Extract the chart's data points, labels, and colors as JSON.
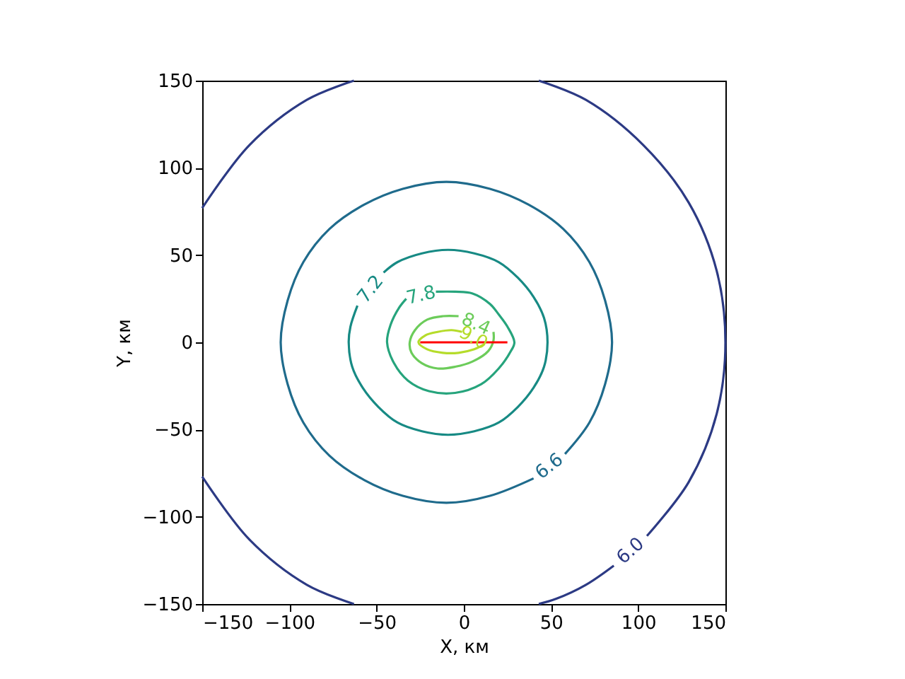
{
  "chart_data": {
    "type": "line",
    "xlabel": "X, км",
    "ylabel": "Y, км",
    "marker": "none",
    "xlim": [
      -150,
      150
    ],
    "ylim": [
      -150,
      150
    ],
    "xticks": [
      -150,
      -100,
      -50,
      0,
      50,
      100,
      150
    ],
    "yticks": [
      -150,
      -100,
      -50,
      0,
      50,
      100,
      150
    ],
    "series": [
      {
        "name": "6.0",
        "color": "#2c3a84",
        "x": [
          86,
          70,
          53,
          43,
          null,
          -63,
          -90,
          -123,
          -150,
          null,
          -150,
          -123,
          -90,
          -63,
          null,
          43,
          70,
          103,
          129,
          145,
          150,
          145,
          129,
          105
        ],
        "values": [
          -128,
          -139,
          -147,
          -150,
          null,
          -150,
          -139,
          -113,
          -77,
          null,
          77,
          113,
          139,
          150,
          null,
          150,
          139,
          113,
          80,
          41,
          0,
          -41,
          -80,
          -111
        ]
      },
      {
        "name": "6.6",
        "color": "#1f6b8c",
        "x": [
          40,
          15,
          -10,
          -35,
          -57,
          -77,
          -92,
          -101,
          -105,
          -101,
          -92,
          -77,
          -57,
          -35,
          -10,
          15,
          37,
          57,
          72,
          81,
          85,
          81,
          72,
          58
        ],
        "values": [
          -78,
          -88,
          -92,
          -88,
          -79,
          -65,
          -46,
          -24,
          0,
          24,
          46,
          65,
          79,
          88,
          92,
          88,
          79,
          65,
          46,
          24,
          0,
          -24,
          -46,
          -64
        ]
      },
      {
        "name": "7.2",
        "color": "#178a84",
        "x": [
          -61,
          -65,
          -66,
          -64,
          -58,
          -49,
          -38,
          -24,
          -9,
          6,
          20,
          31,
          40,
          46,
          48,
          46,
          40,
          31,
          20,
          6,
          -9,
          -24,
          -38,
          -46
        ],
        "values": [
          21,
          9,
          0,
          -14,
          -26,
          -37,
          -46,
          -51,
          -53,
          -51,
          -46,
          -37,
          -26,
          -14,
          0,
          14,
          26,
          37,
          46,
          51,
          53,
          51,
          46,
          40
        ]
      },
      {
        "name": "7.8",
        "color": "#26a47c",
        "x": [
          -16,
          -5,
          5,
          15,
          20,
          25,
          29,
          27,
          20,
          10,
          -5,
          -20,
          -32,
          -40,
          -44,
          -42,
          -37,
          -33
        ],
        "values": [
          29,
          29,
          28,
          22,
          16,
          9,
          0,
          -5,
          -15,
          -24,
          -29,
          -28,
          -22,
          -12,
          0,
          10,
          20,
          25
        ]
      },
      {
        "name": "8.4",
        "color": "#6ccc5a",
        "x": [
          17,
          17,
          14,
          5,
          -5,
          -15,
          -24,
          -30,
          -31,
          -28,
          -21,
          -12,
          -3
        ],
        "values": [
          6,
          1,
          -5,
          -11,
          -14,
          -15,
          -12,
          -6,
          0,
          7,
          13,
          15,
          15
        ]
      },
      {
        "name": "9.0",
        "color": "#b5dc2a",
        "x": [
          12,
          6,
          -3,
          -12,
          -21,
          -26,
          -22,
          -15,
          -7,
          -1
        ],
        "values": [
          -1,
          -4,
          -6,
          -6,
          -4,
          0,
          4,
          6,
          7,
          6
        ]
      },
      {
        "color": "#ff0000",
        "x": [
          -25,
          25
        ],
        "values": [
          0,
          0
        ]
      }
    ]
  }
}
